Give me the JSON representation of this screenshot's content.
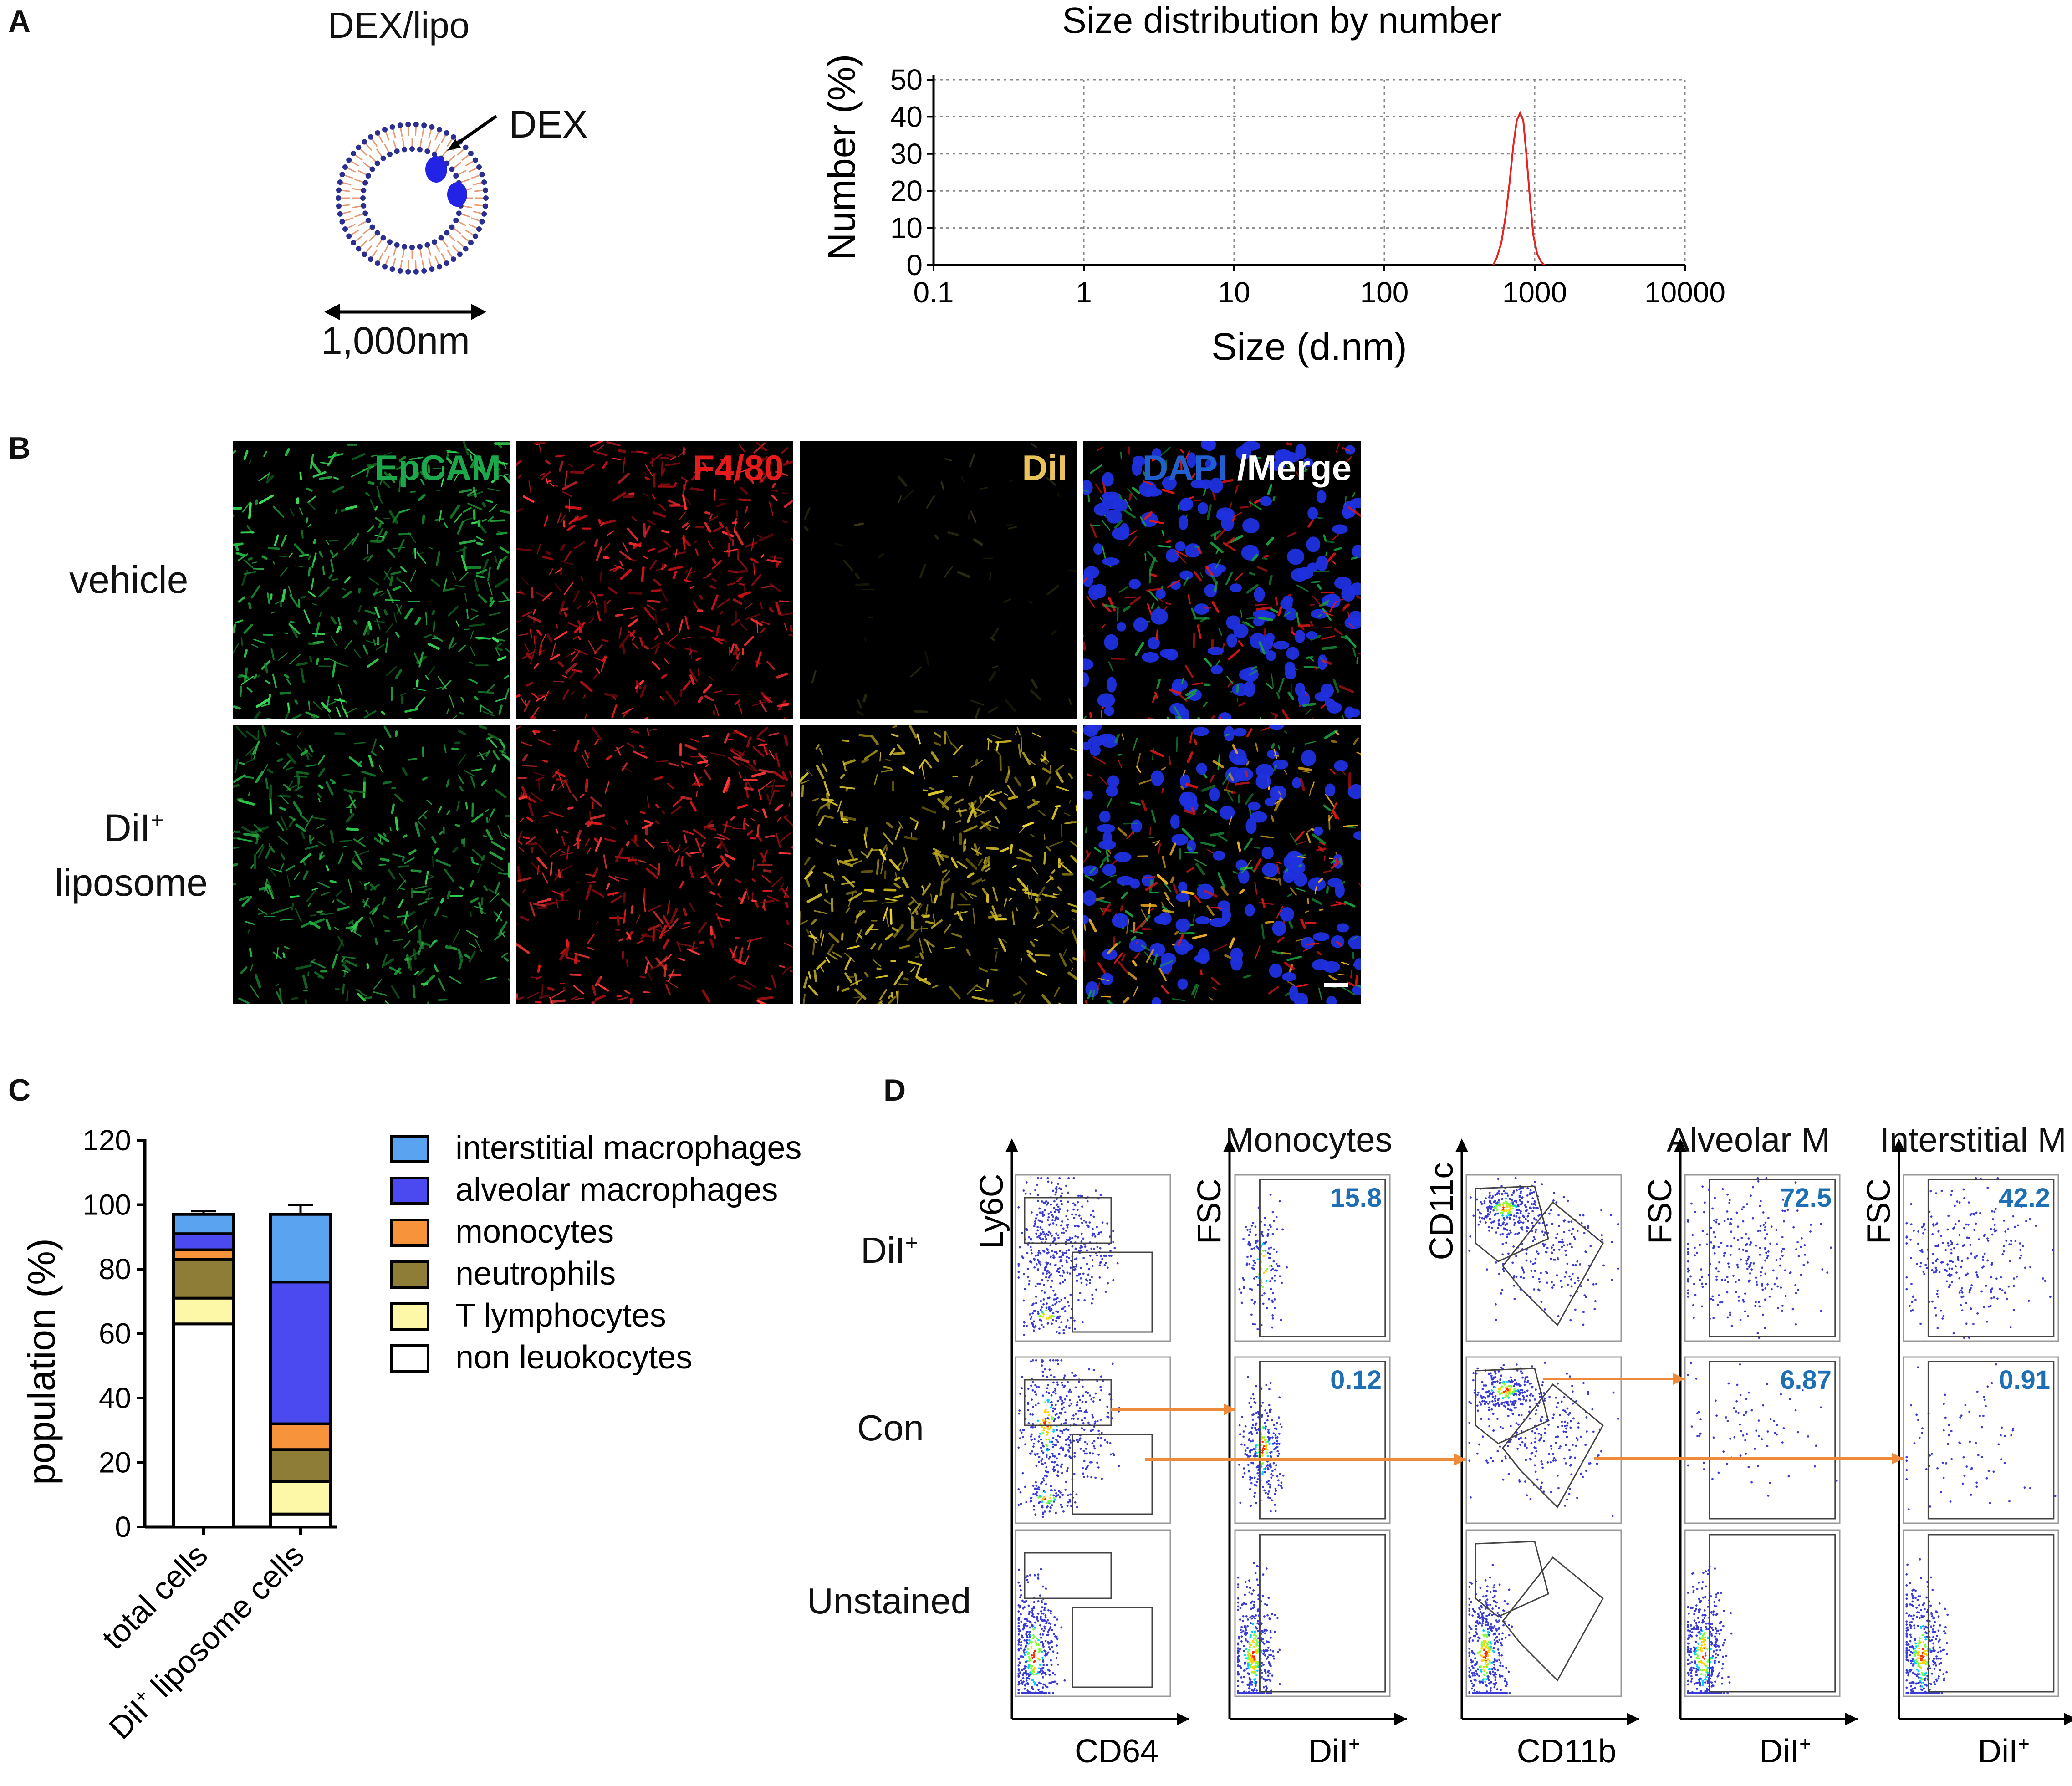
{
  "panels": {
    "a": "A",
    "b": "B",
    "c": "C",
    "d": "D"
  },
  "panel_a": {
    "schematic_title": "DEX/lipo",
    "dex_label": "DEX",
    "size_label": "1,000nm",
    "colors": {
      "bead": "#2b2f8f",
      "tail": "#e79a74",
      "drug": "#2323e6"
    }
  },
  "panel_b": {
    "channels": [
      {
        "label": "EpCAM",
        "color": "#1aa84a"
      },
      {
        "label": "F4/80",
        "color": "#e51b1b"
      },
      {
        "label": "DiI",
        "color": "#e9c35a"
      },
      {
        "label": "DAPI",
        "color": "#1f5fd0",
        "suffix": " /Merge",
        "suffix_color": "#ffffff"
      }
    ],
    "rows": [
      {
        "label_line1": "vehicle",
        "label_line2": ""
      },
      {
        "label_line1": "DiI+",
        "label_line2": "liposome"
      }
    ]
  },
  "panel_d": {
    "col_headers": [
      "Monocytes",
      "Alveolar M",
      "Interstitial M"
    ],
    "row_labels": [
      "DiI+",
      "Con",
      "Unstained"
    ],
    "axis_y": [
      "Ly6C",
      "FSC",
      "CD11c",
      "FSC",
      "FSC"
    ],
    "axis_x": [
      "CD64",
      "DiI+",
      "CD11b",
      "DiI+",
      "DiI+"
    ],
    "values": [
      [
        "15.8",
        "72.5",
        "42.2"
      ],
      [
        "0.12",
        "6.87",
        "0.91"
      ],
      [
        "",
        "",
        ""
      ]
    ],
    "colors": {
      "value": "#1f6fb5",
      "arrow": "#ee8a3c"
    }
  },
  "chart_data": [
    {
      "type": "line",
      "title": "Size distribution by number",
      "xlabel": "Size (d.nm)",
      "ylabel": "Number (%)",
      "x_scale": "log",
      "xlim": [
        0.1,
        10000
      ],
      "ylim": [
        0,
        50
      ],
      "x_ticks": [
        "0.1",
        "1",
        "10",
        "100",
        "1000",
        "10000"
      ],
      "y_ticks": [
        "0",
        "10",
        "20",
        "30",
        "40",
        "50"
      ],
      "grid": true,
      "series": [
        {
          "color": "#e8231f",
          "x": [
            530,
            560,
            600,
            640,
            680,
            720,
            760,
            800,
            840,
            880,
            930,
            980,
            1040,
            1100,
            1160
          ],
          "y": [
            0,
            2,
            6,
            13,
            22,
            32,
            39,
            41,
            39,
            30,
            18,
            8,
            3,
            1,
            0
          ]
        }
      ]
    },
    {
      "type": "bar",
      "stacked": true,
      "ylabel": "population (%)",
      "ylim": [
        0,
        120
      ],
      "y_ticks": [
        "0",
        "20",
        "40",
        "60",
        "80",
        "100",
        "120"
      ],
      "categories": [
        "total cells",
        "DiI+ liposome cells"
      ],
      "legend_position": "right",
      "series": [
        {
          "name": "non leuokocytes",
          "color": "#ffffff",
          "values": [
            63,
            4
          ],
          "errors": [
            2,
            2
          ]
        },
        {
          "name": "T lymphocytes",
          "color": "#fdf7a8",
          "values": [
            8,
            10
          ],
          "errors": [
            1,
            1
          ]
        },
        {
          "name": "neutrophils",
          "color": "#8e7d37",
          "values": [
            12,
            10
          ],
          "errors": [
            1,
            1
          ]
        },
        {
          "name": "monocytes",
          "color": "#f7943b",
          "values": [
            3,
            8
          ],
          "errors": [
            1,
            1
          ]
        },
        {
          "name": "alveolar macrophages",
          "color": "#4a4af0",
          "values": [
            5,
            44
          ],
          "errors": [
            1,
            6
          ]
        },
        {
          "name": "interstitial macrophages",
          "color": "#5aa3f0",
          "values": [
            6,
            21
          ],
          "errors": [
            1,
            3
          ]
        }
      ],
      "legend_order": [
        "interstitial macrophages",
        "alveolar macrophages",
        "monocytes",
        "neutrophils",
        "T lymphocytes",
        "non leuokocytes"
      ]
    }
  ]
}
